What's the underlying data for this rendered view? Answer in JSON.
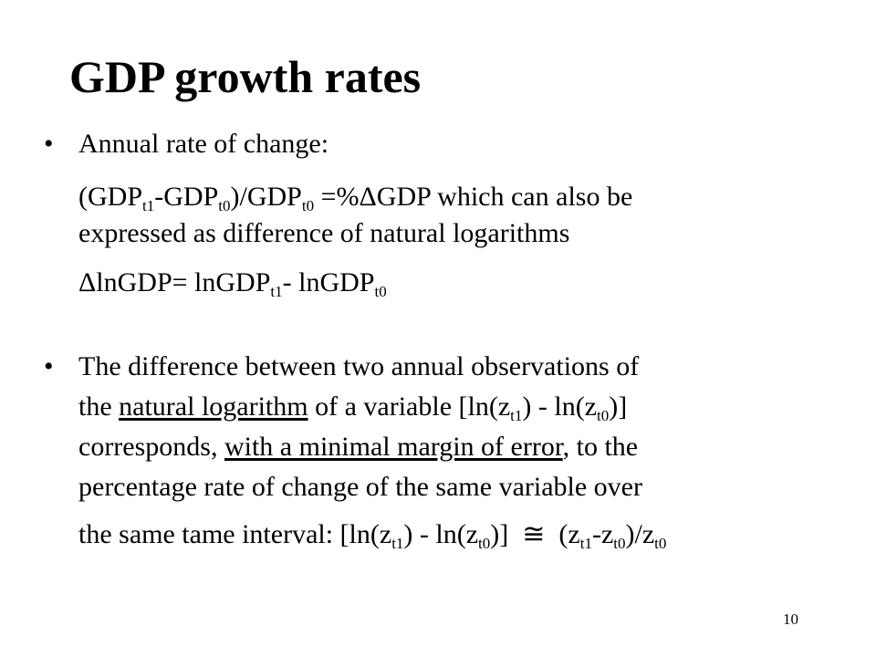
{
  "slide": {
    "title": "GDP growth rates",
    "page_number": "10",
    "bullet_glyph": "•",
    "bullet1": {
      "text": "Annual rate of change:",
      "formula1": {
        "a": "(GDP",
        "a_sub": "t1",
        "b": "-GDP",
        "b_sub": "t0",
        "c": ")/GDP",
        "c_sub": "t0",
        "d": " =%ΔGDP which can also be"
      },
      "formula1_cont": "expressed as difference of natural logarithms",
      "formula2": {
        "a": "ΔlnGDP= lnGDP",
        "a_sub": "t1",
        "b": "- lnGDP",
        "b_sub": "t0"
      }
    },
    "bullet2": {
      "line1": "The difference between two annual observations of",
      "line2": {
        "a": "the ",
        "link": "natural logarithm",
        "b": " of a variable [ln(z",
        "b_sub": "t1",
        "c": ") - ln(z",
        "c_sub": "t0",
        "d": ")]"
      },
      "line3": {
        "a": "corresponds, ",
        "link": "with a minimal margin of error",
        "b": ", to the"
      },
      "line4": "percentage rate of change of the same variable over",
      "line5": {
        "a": "the same tame interval: [ln(z",
        "a_sub": "t1",
        "b": ") - ln(z",
        "b_sub": "t0",
        "c": ")]  ≅  (z",
        "c_sub": "t1",
        "d": "-z",
        "d_sub": "t0",
        "e": ")/z",
        "e_sub": "t0"
      }
    }
  }
}
